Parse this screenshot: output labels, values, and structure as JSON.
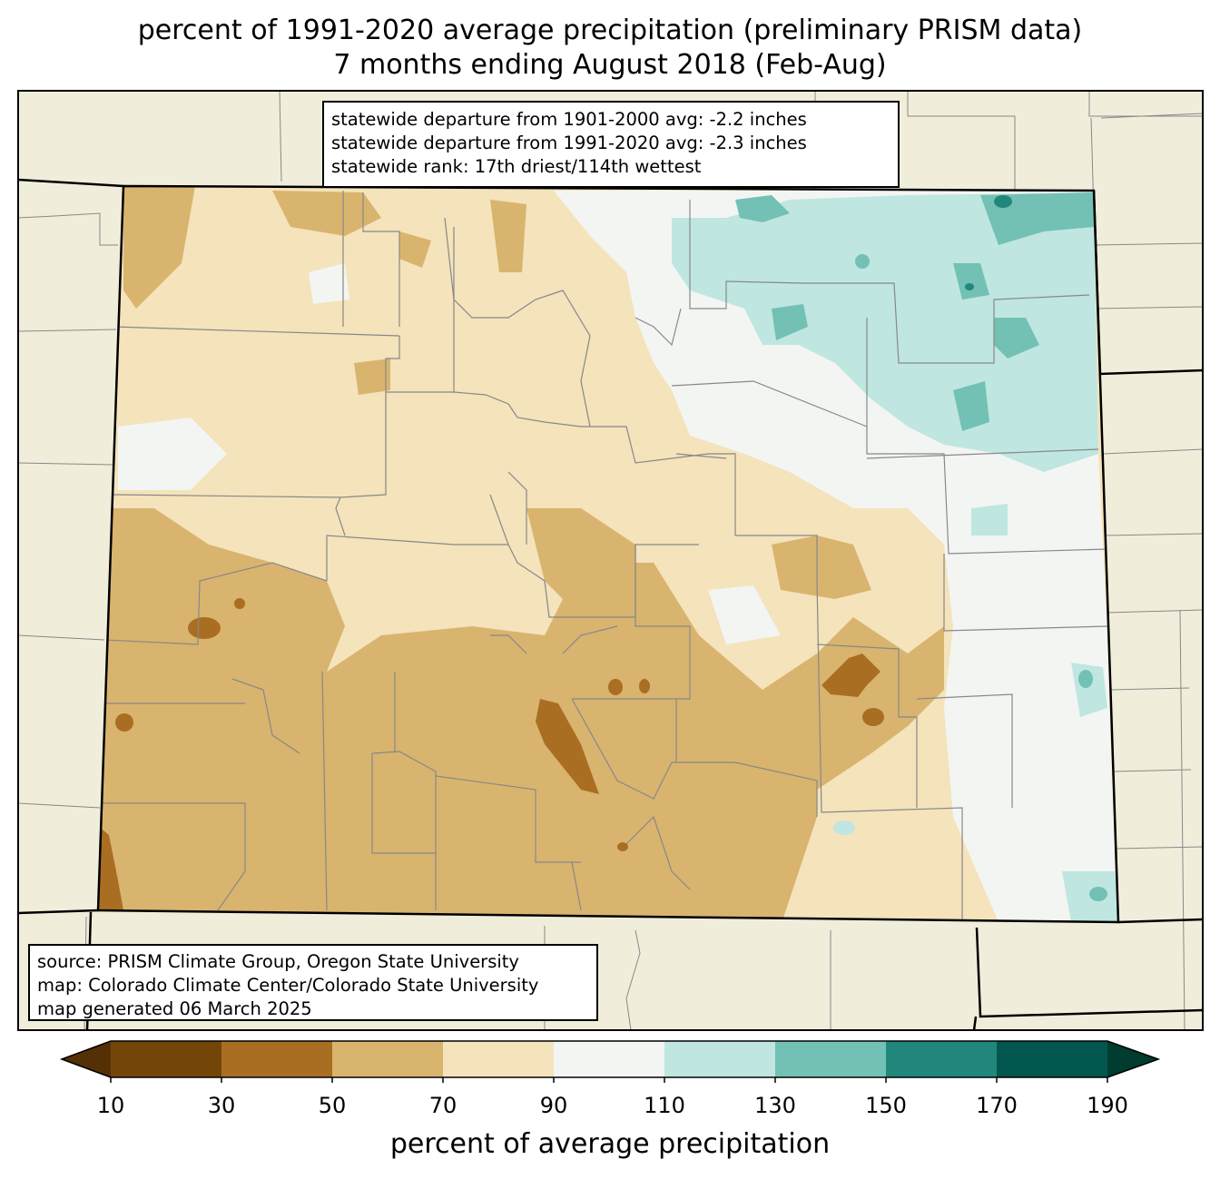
{
  "title": {
    "line1": "percent of 1991-2020 average precipitation (preliminary PRISM data)",
    "line2": "7 months ending August 2018 (Feb-Aug)"
  },
  "stats": {
    "line1": "statewide departure from 1901-2000 avg: -2.2 inches",
    "line2": "statewide departure from 1991-2020 avg: -2.3 inches",
    "line3": "statewide rank: 17th driest/114th wettest"
  },
  "source": {
    "line1": "source: PRISM Climate Group, Oregon State University",
    "line2": "map: Colorado Climate Center/Colorado State University",
    "line3": "map generated 06 March 2025"
  },
  "colorbar": {
    "label": "percent of average precipitation",
    "ticks": [
      "10",
      "30",
      "50",
      "70",
      "90",
      "110",
      "130",
      "150",
      "170",
      "190"
    ],
    "colors": [
      "#734608",
      "#a96e22",
      "#d9b46f",
      "#f4e3bb",
      "#f3f5f3",
      "#bfe6e0",
      "#72c1b4",
      "#21877c",
      "#01574d"
    ],
    "under_color": "#543005",
    "over_color": "#003c30"
  },
  "map_colors": {
    "background": "#f0eedb",
    "state_border": "#000000",
    "county_border": "#888888"
  }
}
